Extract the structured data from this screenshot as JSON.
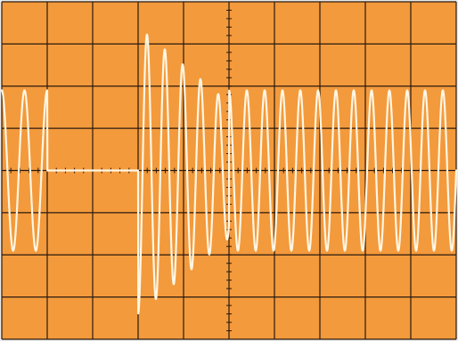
{
  "display": {
    "background_color": "#f39a3c",
    "grid_color": "#2b1a0e",
    "trace_color": "#fff6e3",
    "frame_color": "#eaeaea"
  },
  "chart_data": {
    "type": "line",
    "grid": true,
    "grid_divisions": {
      "x": 10,
      "y": 8
    },
    "minor_ticks_per_division": 5,
    "xlim": [
      0,
      10
    ],
    "ylim": [
      -4,
      4
    ],
    "series": [
      {
        "values_description_free": true,
        "segments": [
          {
            "x_start": 0.0,
            "x_end": 1.0,
            "amplitude": 1.9,
            "cycles_per_div": 2.0,
            "phase": 1.5708
          },
          {
            "x_start": 1.0,
            "x_end": 3.0,
            "amplitude": 0.0,
            "cycles_per_div": 0.0,
            "phase": 0.0
          },
          {
            "x_start": 3.0,
            "x_end": 5.0,
            "amplitude_start": 3.4,
            "amplitude_end": 1.6,
            "cycles_per_div": 2.55,
            "phase": 4.7124
          },
          {
            "x_start": 5.0,
            "x_end": 10.0,
            "amplitude": 1.9,
            "cycles_per_div": 2.55,
            "phase": 1.5708
          }
        ]
      }
    ]
  }
}
